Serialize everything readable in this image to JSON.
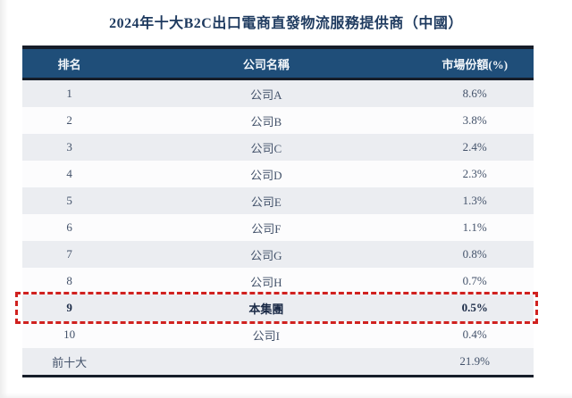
{
  "title": "2024年十大B2C出口電商直發物流服務提供商（中國）",
  "colors": {
    "title_text": "#1e3a5f",
    "header_bg": "#1f4e79",
    "header_text": "#f2f6fa",
    "dark_border": "#161d29",
    "row_odd_bg": "#ebedf1",
    "row_even_bg": "#fcfcfd",
    "cell_text": "#43526a",
    "highlight_text": "#1b2b47",
    "highlight_border": "#d0211f"
  },
  "table": {
    "columns": {
      "rank": "排名",
      "company": "公司名稱",
      "share": "市場份額(%)"
    },
    "rows": [
      {
        "rank": "1",
        "company": "公司A",
        "share": "8.6%"
      },
      {
        "rank": "2",
        "company": "公司B",
        "share": "3.8%"
      },
      {
        "rank": "3",
        "company": "公司C",
        "share": "2.4%"
      },
      {
        "rank": "4",
        "company": "公司D",
        "share": "2.3%"
      },
      {
        "rank": "5",
        "company": "公司E",
        "share": "1.3%"
      },
      {
        "rank": "6",
        "company": "公司F",
        "share": "1.1%"
      },
      {
        "rank": "7",
        "company": "公司G",
        "share": "0.8%"
      },
      {
        "rank": "8",
        "company": "公司H",
        "share": "0.7%"
      },
      {
        "rank": "9",
        "company": "本集團",
        "share": "0.5%",
        "highlighted": true
      },
      {
        "rank": "10",
        "company": "公司I",
        "share": "0.4%"
      },
      {
        "rank": "前十大",
        "company": "",
        "share": "21.9%",
        "is_total": true
      }
    ]
  }
}
